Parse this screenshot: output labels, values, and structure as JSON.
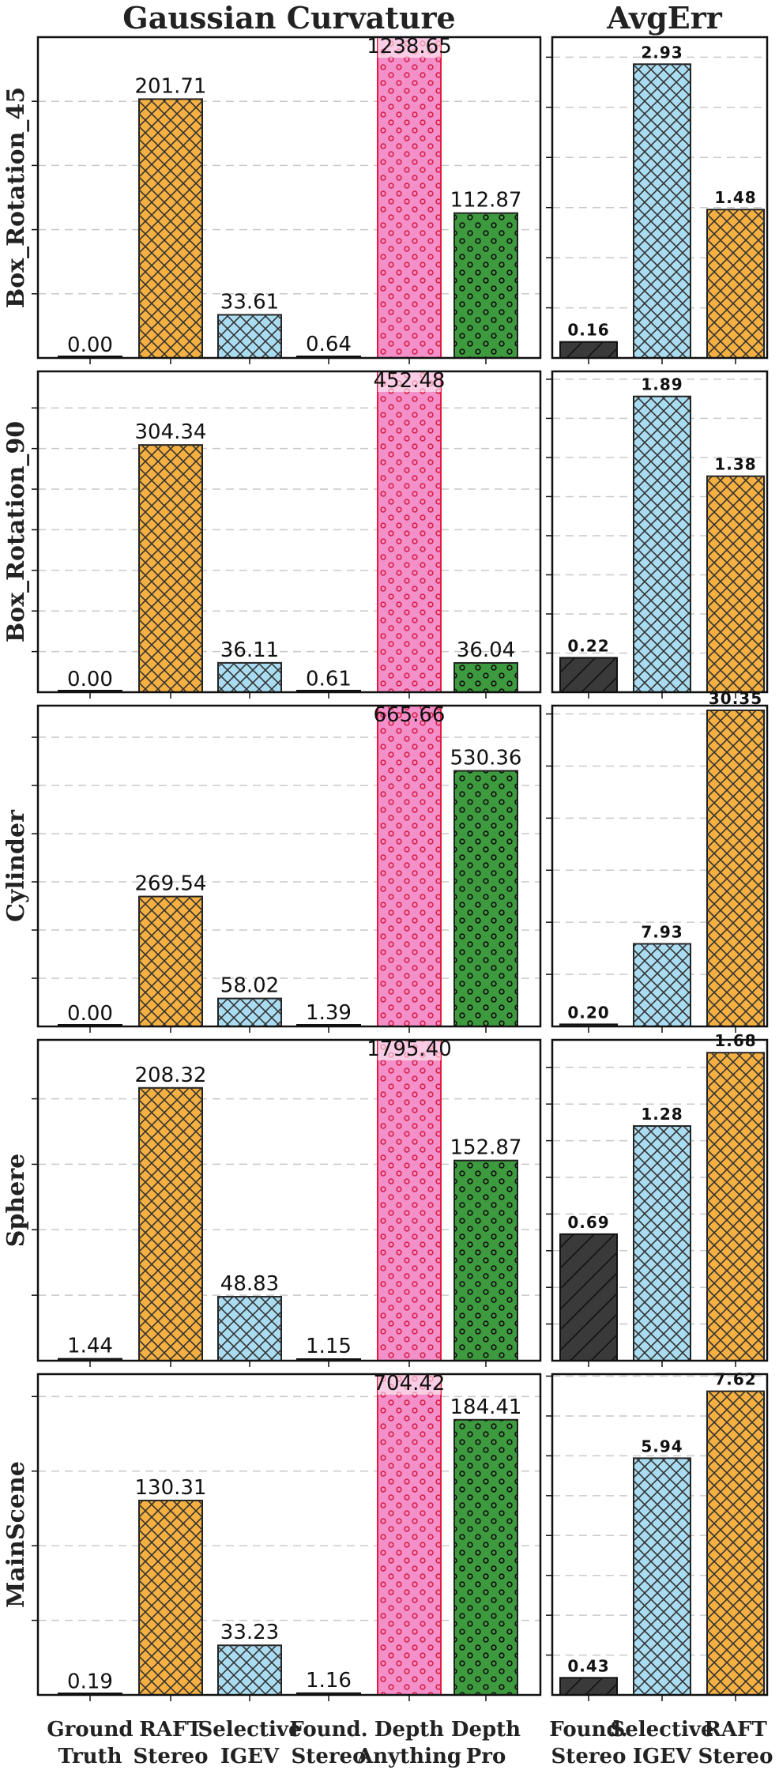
{
  "chart_data": {
    "type": "bar",
    "left_panel_title": "Gaussian Curvature",
    "right_panel_title": "AvgErr",
    "left_categories": [
      "Ground Truth",
      "RAFT Stereo",
      "Selective IGEV",
      "Found. Stereo",
      "Depth Anything",
      "Depth Pro"
    ],
    "left_category_lines": [
      [
        "Ground",
        "Truth"
      ],
      [
        "RAFT",
        "Stereo"
      ],
      [
        "Selective",
        "IGEV"
      ],
      [
        "Found.",
        "Stereo"
      ],
      [
        "Depth",
        "Anything"
      ],
      [
        "Depth",
        "Pro"
      ]
    ],
    "right_categories": [
      "Found. Stereo",
      "Selective IGEV",
      "RAFT Stereo"
    ],
    "right_category_lines": [
      [
        "Found.",
        "Stereo"
      ],
      [
        "Selective",
        "IGEV"
      ],
      [
        "RAFT",
        "Stereo"
      ]
    ],
    "colors": {
      "Ground Truth": "#3a3a3a",
      "RAFT Stereo": "#f5b041",
      "Selective IGEV": "#a9dcf1",
      "Found. Stereo": "#3a3a3a",
      "Depth Anything": "#f490c9",
      "Depth Pro": "#3e9a3e"
    },
    "rows": [
      {
        "scene": "Box_Rotation_45",
        "gaussian_curvature": [
          0.0,
          201.71,
          33.61,
          0.64,
          1238.65,
          112.87
        ],
        "gaussian_labels": [
          "0.00",
          "201.71",
          "33.61",
          "0.64",
          "1238.65",
          "112.87"
        ],
        "left_ylim": [
          0,
          250
        ],
        "left_grid": [
          50,
          100,
          150,
          200
        ],
        "avgerr": [
          0.16,
          2.93,
          1.48
        ],
        "avgerr_labels": [
          "0.16",
          "2.93",
          "1.48"
        ],
        "right_ylim": [
          0,
          3.2
        ],
        "right_grid": [
          0.5,
          1.0,
          1.5,
          2.0,
          2.5,
          3.0
        ]
      },
      {
        "scene": "Box_Rotation_90",
        "gaussian_curvature": [
          0.0,
          304.34,
          36.11,
          0.61,
          452.48,
          36.04
        ],
        "gaussian_labels": [
          "0.00",
          "304.34",
          "36.11",
          "0.61",
          "452.48",
          "36.04"
        ],
        "left_ylim": [
          0,
          395
        ],
        "left_grid": [
          50,
          100,
          150,
          200,
          250,
          300,
          350
        ],
        "avgerr": [
          0.22,
          1.89,
          1.38
        ],
        "avgerr_labels": [
          "0.22",
          "1.89",
          "1.38"
        ],
        "right_ylim": [
          0,
          2.05
        ],
        "right_grid": [
          0.25,
          0.5,
          0.75,
          1.0,
          1.25,
          1.5,
          1.75,
          2.0
        ]
      },
      {
        "scene": "Cylinder",
        "gaussian_curvature": [
          0.0,
          269.54,
          58.02,
          1.39,
          665.66,
          530.36
        ],
        "gaussian_labels": [
          "0.00",
          "269.54",
          "58.02",
          "1.39",
          "665.66",
          "530.36"
        ],
        "left_ylim": [
          0,
          665.66
        ],
        "left_grid": [
          100,
          200,
          300,
          400,
          500,
          600
        ],
        "avgerr": [
          0.2,
          7.93,
          30.35
        ],
        "avgerr_labels": [
          "0.20",
          "7.93",
          "30.35"
        ],
        "right_ylim": [
          0,
          30.8
        ],
        "right_grid": [
          5,
          10,
          15,
          20,
          25,
          30
        ]
      },
      {
        "scene": "Sphere",
        "gaussian_curvature": [
          1.44,
          208.32,
          48.83,
          1.15,
          1795.4,
          152.87
        ],
        "gaussian_labels": [
          "1.44",
          "208.32",
          "48.83",
          "1.15",
          "1795.40",
          "152.87"
        ],
        "left_ylim": [
          0,
          245
        ],
        "left_grid": [
          50,
          100,
          150,
          200
        ],
        "avgerr": [
          0.69,
          1.28,
          1.68
        ],
        "avgerr_labels": [
          "0.69",
          "1.28",
          "1.68"
        ],
        "right_ylim": [
          0,
          1.75
        ],
        "right_grid": [
          0.2,
          0.4,
          0.6,
          0.8,
          1.0,
          1.2,
          1.4,
          1.6
        ]
      },
      {
        "scene": "MainScene",
        "gaussian_curvature": [
          0.19,
          130.31,
          33.23,
          1.16,
          704.42,
          184.41
        ],
        "gaussian_labels": [
          "0.19",
          "130.31",
          "33.23",
          "1.16",
          "704.42",
          "184.41"
        ],
        "left_ylim": [
          0,
          215
        ],
        "left_grid": [
          50,
          100,
          150,
          200
        ],
        "avgerr": [
          0.43,
          5.94,
          7.62
        ],
        "avgerr_labels": [
          "0.43",
          "5.94",
          "7.62"
        ],
        "right_ylim": [
          0,
          8.05
        ],
        "right_grid": [
          1,
          2,
          3,
          4,
          5,
          6,
          7,
          8
        ]
      }
    ]
  }
}
